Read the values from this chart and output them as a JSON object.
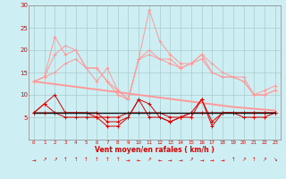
{
  "background_color": "#cdeef3",
  "grid_color": "#aacccc",
  "x": [
    0,
    1,
    2,
    3,
    4,
    5,
    6,
    7,
    8,
    9,
    10,
    11,
    12,
    13,
    14,
    15,
    16,
    17,
    18,
    19,
    20,
    21,
    22,
    23
  ],
  "line_max": [
    13,
    14,
    23,
    19,
    20,
    16,
    13,
    16,
    11,
    9,
    18,
    29,
    22,
    19,
    17,
    17,
    19,
    17,
    15,
    14,
    14,
    10,
    11,
    12
  ],
  "line_mid1": [
    13,
    14,
    19,
    21,
    20,
    16,
    16,
    13,
    10,
    9,
    18,
    20,
    18,
    18,
    16,
    17,
    19,
    15,
    14,
    14,
    13,
    10,
    10,
    11
  ],
  "line_mid2": [
    13,
    14,
    15,
    17,
    18,
    16,
    16,
    13,
    11,
    9,
    18,
    19,
    18,
    17,
    16,
    17,
    18,
    15,
    14,
    14,
    13,
    10,
    10,
    11
  ],
  "line_trend1": [
    13,
    12.7,
    12.4,
    12.1,
    11.8,
    11.5,
    11.2,
    10.9,
    10.6,
    10.3,
    10.0,
    9.7,
    9.4,
    9.1,
    8.8,
    8.5,
    8.2,
    7.9,
    7.6,
    7.3,
    7.1,
    6.9,
    6.7,
    6.5
  ],
  "line_avg": [
    6,
    8,
    10,
    6,
    6,
    6,
    6,
    4,
    4,
    5,
    9,
    8,
    5,
    4,
    5,
    6,
    9,
    4,
    6,
    6,
    6,
    6,
    6,
    6
  ],
  "line_med": [
    6,
    6,
    6,
    6,
    6,
    6,
    5,
    5,
    5,
    6,
    6,
    6,
    6,
    5,
    5,
    6,
    6,
    6,
    6,
    6,
    6,
    6,
    6,
    6
  ],
  "line_trend2": [
    6,
    6,
    6,
    6,
    6,
    6,
    6,
    6,
    6,
    6,
    6,
    6,
    6,
    6,
    6,
    6,
    6,
    6,
    6,
    6,
    6,
    6,
    6,
    6
  ],
  "line_min": [
    6,
    8,
    6,
    5,
    5,
    5,
    5,
    3,
    3,
    5,
    9,
    5,
    5,
    4,
    5,
    5,
    9,
    3,
    6,
    6,
    5,
    5,
    5,
    6
  ],
  "color_light": "#ff9999",
  "color_dark": "#dd0000",
  "color_black": "#111111",
  "xlabel": "Vent moyen/en rafales ( km/h )",
  "ylim": [
    0,
    30
  ],
  "yticks": [
    0,
    5,
    10,
    15,
    20,
    25,
    30
  ],
  "arrow_chars": [
    "→",
    "↗",
    "↗",
    "↑",
    "↑",
    "↑",
    "↑",
    "↑",
    "↑",
    "→",
    "←",
    "↗",
    "←",
    "→",
    "→",
    "↗",
    "→",
    "→",
    "→",
    "↑",
    "↗",
    "↑",
    "↗",
    "↘"
  ]
}
